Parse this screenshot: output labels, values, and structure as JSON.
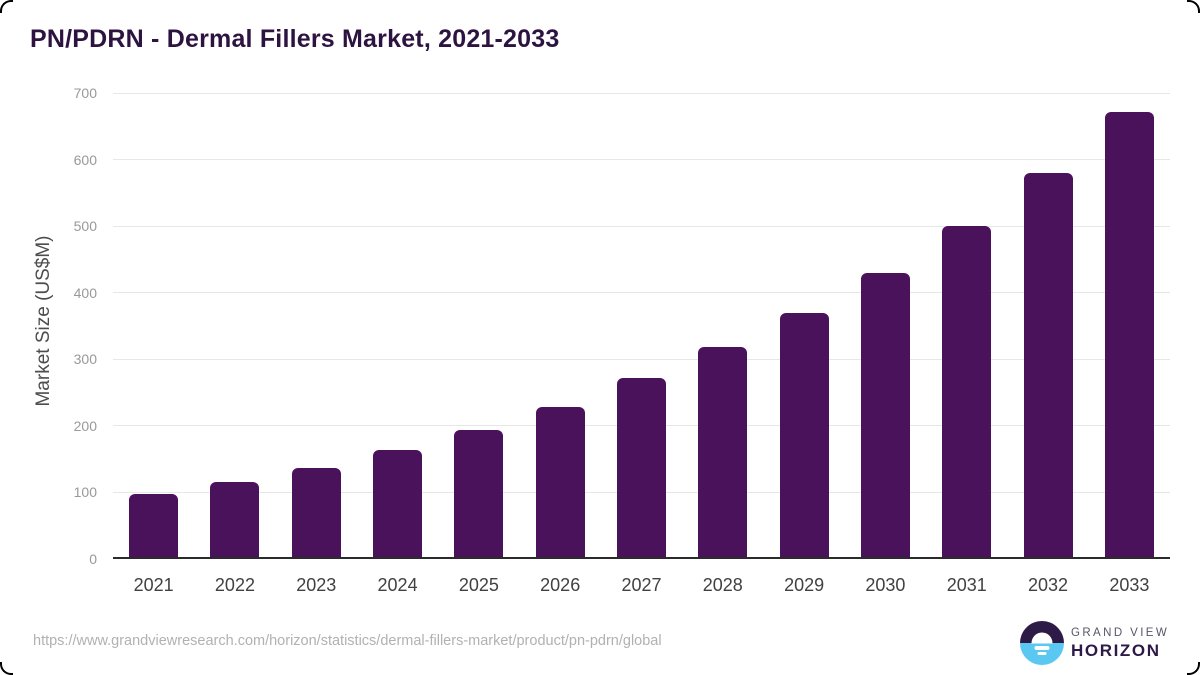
{
  "title": "PN/PDRN - Dermal Fillers Market, 2021-2033",
  "chart_data": {
    "type": "bar",
    "categories": [
      "2021",
      "2022",
      "2023",
      "2024",
      "2025",
      "2026",
      "2027",
      "2028",
      "2029",
      "2030",
      "2031",
      "2032",
      "2033"
    ],
    "values": [
      98,
      116,
      137,
      164,
      194,
      229,
      272,
      318,
      370,
      430,
      500,
      580,
      672
    ],
    "title": "PN/PDRN - Dermal Fillers Market, 2021-2033",
    "xlabel": "",
    "ylabel": "Market Size (US$M)",
    "ylim": [
      0,
      700
    ],
    "yticks": [
      0,
      100,
      200,
      300,
      400,
      500,
      600,
      700
    ],
    "grid": true,
    "legend": false,
    "bar_color": "#4a125a"
  },
  "footer": {
    "source_url": "https://www.grandviewresearch.com/horizon/statistics/dermal-fillers-market/product/pn-pdrn/global",
    "logo": {
      "top_text": "GRAND VIEW",
      "bottom_text": "HORIZON"
    }
  },
  "colors": {
    "title": "#2d1340",
    "bar": "#4a125a",
    "axis_label": "#4d4d4d",
    "y_tick": "#999999",
    "x_tick": "#414141",
    "gridline": "#e7e7e7",
    "axis_line": "#2b2b2b",
    "source": "#b1b1b1",
    "logo_dark": "#2e1a47",
    "logo_blue": "#5bc8f2",
    "logo_gray": "#5a5566"
  }
}
